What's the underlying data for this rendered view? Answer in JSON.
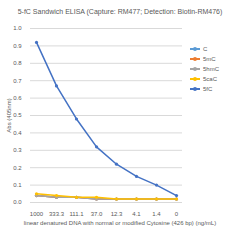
{
  "chart_data": {
    "type": "line",
    "title": "5-fC Sandwich ELISA (Capture: RM477; Detection: Biotin-RM476)",
    "x_label": "linear denatured DNA with normal or modified Cytosine (426 bp) (ng/mL)",
    "y_label": "Abs (405nm)",
    "categories": [
      "1000",
      "333.3",
      "111.1",
      "37.0",
      "12.3",
      "4.1",
      "1.4",
      "0"
    ],
    "series": [
      {
        "name": "C",
        "color": "#5b9bd5",
        "values": [
          0.04,
          0.03,
          0.03,
          0.02,
          0.02,
          0.02,
          0.02,
          0.02
        ]
      },
      {
        "name": "5mC",
        "color": "#ed7d31",
        "values": [
          0.04,
          0.03,
          0.03,
          0.02,
          0.02,
          0.02,
          0.02,
          0.02
        ]
      },
      {
        "name": "5hmC",
        "color": "#a5a5a5",
        "values": [
          0.04,
          0.03,
          0.03,
          0.02,
          0.02,
          0.02,
          0.02,
          0.02
        ]
      },
      {
        "name": "5caC",
        "color": "#ffc000",
        "values": [
          0.05,
          0.04,
          0.03,
          0.03,
          0.02,
          0.02,
          0.02,
          0.02
        ]
      },
      {
        "name": "5fC",
        "color": "#4472c4",
        "values": [
          0.92,
          0.67,
          0.48,
          0.32,
          0.22,
          0.15,
          0.1,
          0.04
        ]
      }
    ],
    "ylim": [
      0,
      1
    ],
    "yticks": [
      0,
      0.1,
      0.2,
      0.3,
      0.4,
      0.5,
      0.6,
      0.7,
      0.8,
      0.9,
      1
    ],
    "grid": true,
    "legend": "right",
    "marker": "circle"
  }
}
